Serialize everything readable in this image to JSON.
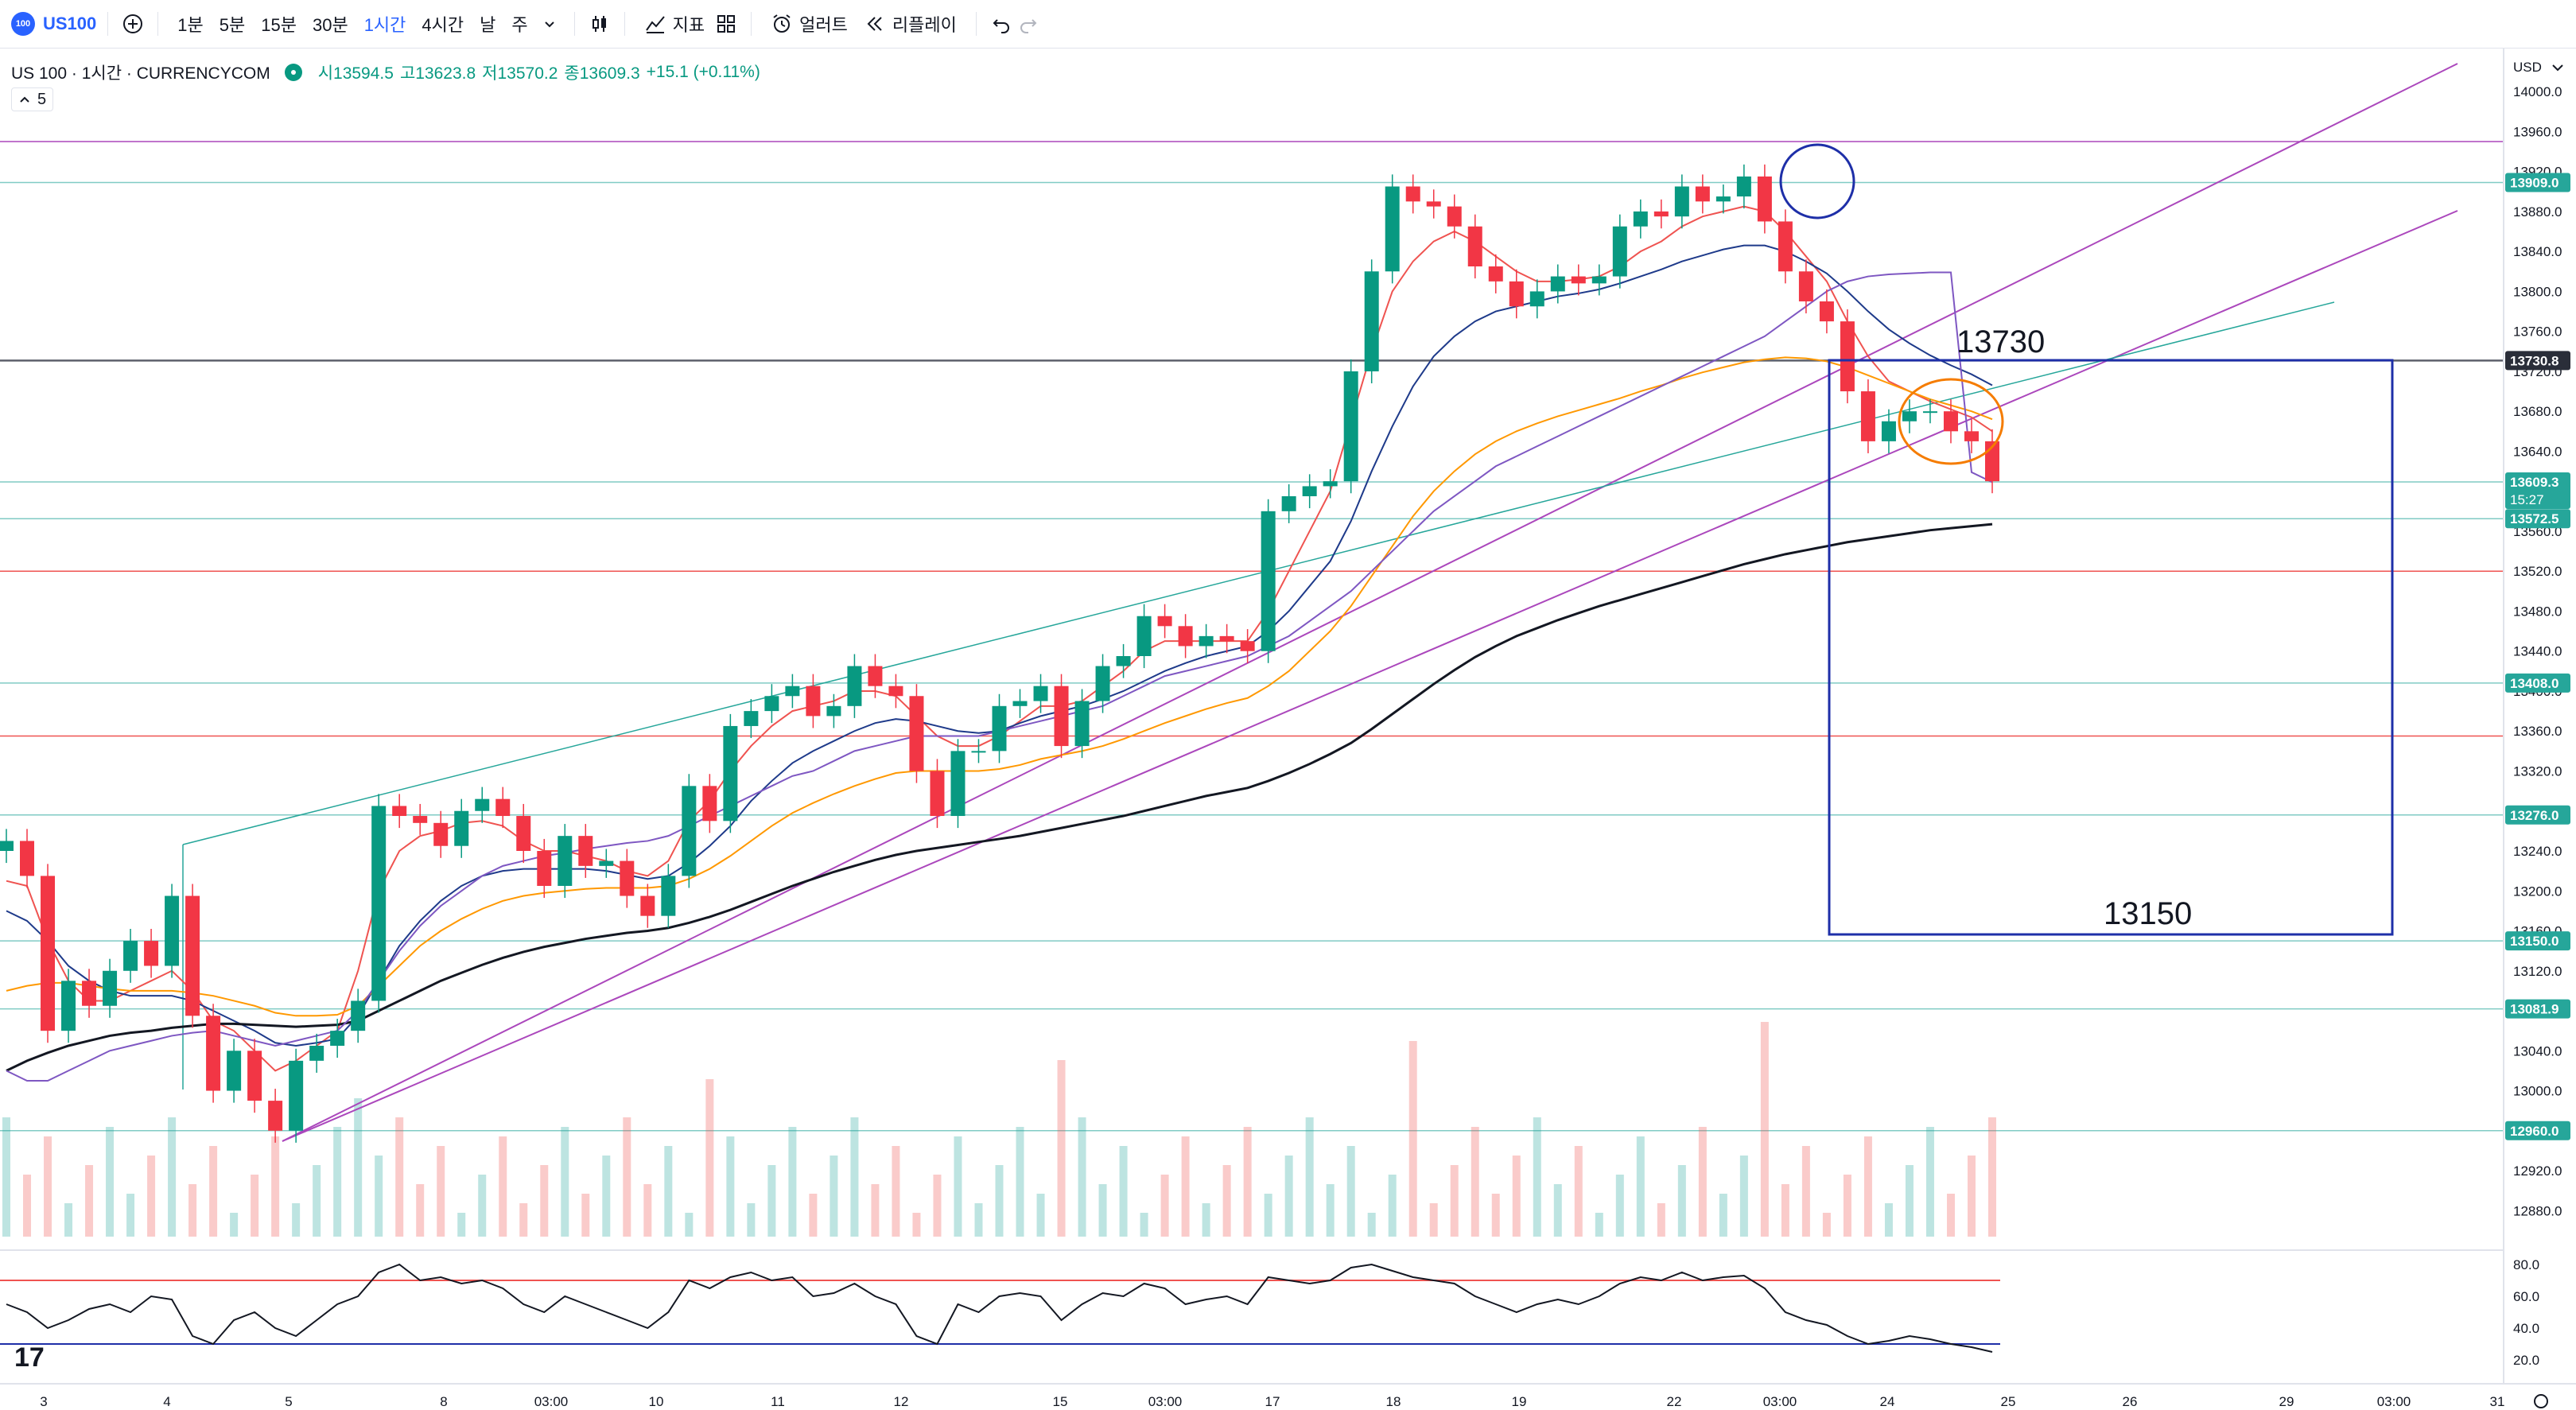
{
  "toolbar": {
    "symbol_logo": "100",
    "symbol": "US100",
    "intervals": [
      "1분",
      "5분",
      "15분",
      "30분",
      "1시간",
      "4시간",
      "날",
      "주"
    ],
    "active_interval": "1시간",
    "indicators_label": "지표",
    "alert_label": "얼러트",
    "replay_label": "리플레이"
  },
  "legend": {
    "title": "US 100 · 1시간 · CURRENCYCOM",
    "open": "시13594.5",
    "high": "고13623.8",
    "low": "저13570.2",
    "close": "종13609.3",
    "change": "+15.1 (+0.11%)",
    "sub_count": "5"
  },
  "annotations": {
    "upper_target": "13730",
    "lower_target": "13150"
  },
  "chart_data": [
    {
      "type": "line",
      "title": "US 100 · 1시간 · CURRENCYCOM",
      "currency": "USD",
      "ylim": [
        12850,
        14020
      ],
      "y_ticks": [
        "14000.0",
        "13960.0",
        "13920.0",
        "13880.0",
        "13840.0",
        "13800.0",
        "13760.0",
        "13720.0",
        "13680.0",
        "13640.0",
        "13600.0",
        "13560.0",
        "13520.0",
        "13480.0",
        "13440.0",
        "13400.0",
        "13360.0",
        "13320.0",
        "13280.0",
        "13240.0",
        "13200.0",
        "13160.0",
        "13120.0",
        "13080.0",
        "13040.0",
        "13000.0",
        "12960.0",
        "12920.0",
        "12880.0"
      ],
      "x_ticks": [
        "3",
        "4",
        "5",
        "8",
        "03:00",
        "10",
        "11",
        "12",
        "15",
        "03:00",
        "17",
        "18",
        "19",
        "22",
        "03:00",
        "24",
        "25",
        "26",
        "29",
        "03:00",
        "31"
      ],
      "grid": false,
      "series": [
        {
          "values": [
            13250,
            13215,
            13060,
            13110,
            13085,
            13120,
            13150,
            13125,
            13195,
            13075,
            13000,
            13040,
            12990,
            12960,
            13030,
            13045,
            13060,
            13090,
            13285,
            13275,
            13268,
            13245,
            13280,
            13292,
            13275,
            13240,
            13205,
            13255,
            13225,
            13230,
            13195,
            13175,
            13215,
            13305,
            13270,
            13365,
            13380,
            13395,
            13405,
            13375,
            13385,
            13425,
            13405,
            13395,
            13320,
            13275,
            13340,
            13340,
            13385,
            13390,
            13405,
            13345,
            13390,
            13425,
            13435,
            13475,
            13465,
            13445,
            13455,
            13450,
            13440,
            13580,
            13595,
            13605,
            13610,
            13720,
            13820,
            13905,
            13890,
            13885,
            13865,
            13825,
            13810,
            13785,
            13800,
            13815,
            13808,
            13815,
            13865,
            13880,
            13875,
            13905,
            13890,
            13895,
            13915,
            13870,
            13820,
            13790,
            13770,
            13700,
            13650,
            13670,
            13680,
            13680,
            13660,
            13650,
            13610
          ]
        },
        {
          "values": [
            13210,
            13205,
            13150,
            13110,
            13090,
            13090,
            13100,
            13110,
            13120,
            13100,
            13070,
            13060,
            13040,
            13020,
            13030,
            13045,
            13060,
            13120,
            13200,
            13240,
            13255,
            13260,
            13268,
            13270,
            13265,
            13250,
            13240,
            13240,
            13235,
            13230,
            13220,
            13215,
            13230,
            13270,
            13290,
            13320,
            13345,
            13365,
            13380,
            13385,
            13390,
            13400,
            13400,
            13395,
            13375,
            13355,
            13345,
            13345,
            13355,
            13370,
            13385,
            13385,
            13390,
            13405,
            13420,
            13440,
            13450,
            13450,
            13450,
            13450,
            13450,
            13480,
            13520,
            13560,
            13600,
            13670,
            13740,
            13800,
            13830,
            13850,
            13860,
            13850,
            13835,
            13820,
            13810,
            13810,
            13812,
            13815,
            13825,
            13840,
            13850,
            13865,
            13875,
            13880,
            13885,
            13880,
            13860,
            13835,
            13810,
            13770,
            13735,
            13710,
            13700,
            13690,
            13682,
            13674,
            13660
          ]
        },
        {
          "values": [
            13180,
            13170,
            13150,
            13125,
            13110,
            13100,
            13095,
            13095,
            13095,
            13090,
            13080,
            13070,
            13060,
            13048,
            13045,
            13048,
            13052,
            13075,
            13110,
            13145,
            13170,
            13190,
            13205,
            13215,
            13220,
            13222,
            13222,
            13222,
            13222,
            13220,
            13216,
            13212,
            13215,
            13228,
            13245,
            13265,
            13290,
            13310,
            13328,
            13340,
            13350,
            13360,
            13368,
            13372,
            13370,
            13365,
            13360,
            13358,
            13360,
            13368,
            13375,
            13380,
            13385,
            13392,
            13400,
            13410,
            13420,
            13428,
            13435,
            13440,
            13445,
            13460,
            13480,
            13505,
            13530,
            13570,
            13620,
            13665,
            13705,
            13735,
            13755,
            13770,
            13780,
            13785,
            13790,
            13795,
            13798,
            13802,
            13808,
            13815,
            13822,
            13830,
            13836,
            13842,
            13846,
            13846,
            13840,
            13830,
            13818,
            13800,
            13780,
            13762,
            13748,
            13736,
            13726,
            13717,
            13706
          ]
        },
        {
          "values": [
            13100,
            13105,
            13108,
            13108,
            13105,
            13102,
            13100,
            13100,
            13100,
            13098,
            13095,
            13090,
            13085,
            13078,
            13075,
            13075,
            13076,
            13085,
            13105,
            13125,
            13145,
            13160,
            13172,
            13182,
            13190,
            13195,
            13198,
            13200,
            13202,
            13203,
            13203,
            13203,
            13205,
            13212,
            13222,
            13235,
            13250,
            13265,
            13278,
            13288,
            13297,
            13305,
            13312,
            13318,
            13320,
            13320,
            13320,
            13320,
            13322,
            13326,
            13332,
            13336,
            13340,
            13345,
            13352,
            13360,
            13368,
            13375,
            13382,
            13388,
            13393,
            13405,
            13420,
            13440,
            13460,
            13485,
            13515,
            13545,
            13575,
            13600,
            13620,
            13637,
            13650,
            13660,
            13668,
            13675,
            13681,
            13687,
            13693,
            13700,
            13706,
            13713,
            13719,
            13724,
            13729,
            13732,
            13734,
            13733,
            13730,
            13724,
            13716,
            13708,
            13700,
            13692,
            13686,
            13680,
            13672
          ]
        },
        {
          "values": [
            13020,
            13030,
            13038,
            13045,
            13050,
            13055,
            13058,
            13060,
            13063,
            13065,
            13067,
            13067,
            13066,
            13065,
            13064,
            13065,
            13066,
            13070,
            13080,
            13090,
            13100,
            13110,
            13118,
            13126,
            13133,
            13139,
            13144,
            13148,
            13152,
            13155,
            13158,
            13160,
            13163,
            13168,
            13174,
            13181,
            13189,
            13197,
            13205,
            13212,
            13219,
            13225,
            13231,
            13236,
            13240,
            13243,
            13246,
            13249,
            13252,
            13255,
            13259,
            13263,
            13267,
            13271,
            13275,
            13280,
            13285,
            13290,
            13295,
            13299,
            13303,
            13310,
            13318,
            13327,
            13337,
            13348,
            13362,
            13377,
            13392,
            13407,
            13421,
            13434,
            13445,
            13455,
            13463,
            13471,
            13478,
            13485,
            13491,
            13497,
            13503,
            13509,
            13515,
            13521,
            13527,
            13532,
            13537,
            13541,
            13545,
            13549,
            13552,
            13555,
            13558,
            13561,
            13563,
            13565,
            13567
          ]
        },
        {
          "values": [
            13020,
            13010,
            13010,
            13020,
            13030,
            13040,
            13045,
            13050,
            13055,
            13058,
            13060,
            13055,
            13050,
            13045,
            13050,
            13055,
            13060,
            13080,
            13110,
            13140,
            13165,
            13185,
            13200,
            13215,
            13225,
            13230,
            13235,
            13238,
            13242,
            13245,
            13248,
            13250,
            13255,
            13265,
            13275,
            13285,
            13295,
            13305,
            13315,
            13320,
            13330,
            13340,
            13345,
            13350,
            13355,
            13355,
            13355,
            13355,
            13360,
            13365,
            13370,
            13375,
            13380,
            13385,
            13395,
            13405,
            13415,
            13420,
            13425,
            13430,
            13435,
            13445,
            13455,
            13470,
            13485,
            13500,
            13520,
            13540,
            13560,
            13580,
            13595,
            13610,
            13625,
            13635,
            13645,
            13655,
            13665,
            13675,
            13685,
            13695,
            13705,
            13715,
            13725,
            13735,
            13745,
            13755,
            13770,
            13785,
            13800,
            13810,
            13815,
            13817,
            13818,
            13819,
            13819,
            13619,
            13609
          ]
        }
      ],
      "levels": [
        "13909.0",
        "13730.8",
        "13609.3",
        "13572.5",
        "13408.0",
        "13276.0",
        "13150.0",
        "13081.9",
        "12960.0"
      ],
      "current_price": "13609.3",
      "countdown": "15:27",
      "rsi": {
        "ylim": [
          15,
          85
        ],
        "y_ticks": [
          "80.0",
          "60.0",
          "40.0",
          "20.0"
        ],
        "upper": 70,
        "lower": 30,
        "values": [
          55,
          50,
          40,
          45,
          52,
          55,
          50,
          60,
          58,
          35,
          30,
          45,
          50,
          40,
          35,
          45,
          55,
          60,
          75,
          80,
          70,
          72,
          68,
          70,
          65,
          55,
          50,
          60,
          55,
          50,
          45,
          40,
          50,
          70,
          65,
          72,
          75,
          70,
          72,
          60,
          62,
          68,
          60,
          55,
          35,
          30,
          55,
          50,
          60,
          62,
          60,
          45,
          55,
          62,
          60,
          68,
          65,
          55,
          58,
          60,
          55,
          72,
          70,
          68,
          70,
          78,
          80,
          76,
          72,
          70,
          68,
          60,
          55,
          50,
          55,
          58,
          55,
          60,
          68,
          72,
          70,
          75,
          70,
          72,
          73,
          65,
          50,
          45,
          42,
          35,
          30,
          32,
          35,
          33,
          30,
          28,
          25
        ]
      }
    }
  ]
}
